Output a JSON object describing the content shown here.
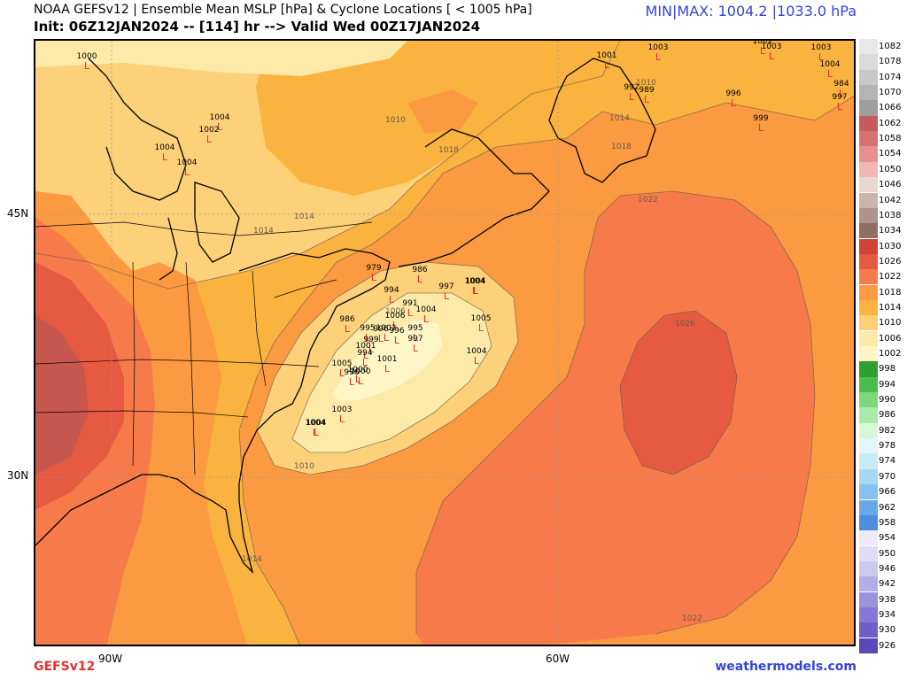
{
  "header": {
    "title": "NOAA GEFSv12 | Ensemble Mean MSLP [hPa] & Cyclone Locations [ < 1005 hPa]",
    "subtitle": "Init: 06Z12JAN2024 -- [114] hr --> Valid Wed 00Z17JAN2024",
    "minmax": "MIN|MAX: 1004.2 |1033.0 hPa"
  },
  "axes": {
    "lat_labels": [
      "45N",
      "30N"
    ],
    "lon_labels": [
      "90W",
      "60W"
    ]
  },
  "footer": {
    "model": "GEFSv12",
    "site": "weathermodels.com"
  },
  "colorbar": {
    "levels": [
      {
        "label": "1082",
        "color": "#e8e8e8"
      },
      {
        "label": "1078",
        "color": "#dadada"
      },
      {
        "label": "1074",
        "color": "#c8c8c8"
      },
      {
        "label": "1070",
        "color": "#b4b4b4"
      },
      {
        "label": "1066",
        "color": "#9e9e9e"
      },
      {
        "label": "1062",
        "color": "#c85a5a"
      },
      {
        "label": "1058",
        "color": "#d87070"
      },
      {
        "label": "1054",
        "color": "#e89090"
      },
      {
        "label": "1050",
        "color": "#f2b6b6"
      },
      {
        "label": "1046",
        "color": "#e8d6d0"
      },
      {
        "label": "1042",
        "color": "#cbb4aa"
      },
      {
        "label": "1038",
        "color": "#b0938a"
      },
      {
        "label": "1034",
        "color": "#8f6f66"
      },
      {
        "label": "1030",
        "color": "#d04438"
      },
      {
        "label": "1026",
        "color": "#e55a40"
      },
      {
        "label": "1022",
        "color": "#f77b4a"
      },
      {
        "label": "1018",
        "color": "#fb9a40"
      },
      {
        "label": "1014",
        "color": "#fbb33f"
      },
      {
        "label": "1010",
        "color": "#fdd07a"
      },
      {
        "label": "1006",
        "color": "#fdeaa8"
      },
      {
        "label": "1002",
        "color": "#fff6c6"
      },
      {
        "label": "998",
        "color": "#2ea02e"
      },
      {
        "label": "994",
        "color": "#4cbd4c"
      },
      {
        "label": "990",
        "color": "#7bd87b"
      },
      {
        "label": "986",
        "color": "#a8eaa8"
      },
      {
        "label": "982",
        "color": "#d6f8d6"
      },
      {
        "label": "978",
        "color": "#e4f6fb"
      },
      {
        "label": "974",
        "color": "#c8ebf6"
      },
      {
        "label": "970",
        "color": "#a6d8f2"
      },
      {
        "label": "966",
        "color": "#86c2ee"
      },
      {
        "label": "962",
        "color": "#68a8e8"
      },
      {
        "label": "958",
        "color": "#4d8ee0"
      },
      {
        "label": "954",
        "color": "#eeeaf8"
      },
      {
        "label": "950",
        "color": "#e0dcf4"
      },
      {
        "label": "946",
        "color": "#ccc8ee"
      },
      {
        "label": "942",
        "color": "#b4aee6"
      },
      {
        "label": "938",
        "color": "#9a92dc"
      },
      {
        "label": "934",
        "color": "#8478d4"
      },
      {
        "label": "930",
        "color": "#6e5ec8"
      },
      {
        "label": "926",
        "color": "#5a48b8"
      }
    ]
  },
  "isobar_labels": [
    "1010",
    "1014",
    "1018",
    "1022",
    "1026",
    "1022",
    "1014",
    "1018",
    "1014",
    "1014",
    "1006",
    "1010",
    "1010"
  ],
  "cyclones": [
    "1000",
    "1004",
    "1002",
    "1004",
    "1004",
    "1001",
    "1003",
    "1002",
    "1003",
    "1003",
    "1004",
    "984",
    "997",
    "996",
    "999",
    "992",
    "989",
    "979",
    "986",
    "994",
    "1004",
    "997",
    "991",
    "1004",
    "1006",
    "996",
    "986",
    "995",
    "1002",
    "996",
    "999",
    "995",
    "1001",
    "997",
    "994",
    "1001",
    "1000",
    "1005",
    "996",
    "1000",
    "1004",
    "1004",
    "1005",
    "1004",
    "1003",
    "1004"
  ]
}
